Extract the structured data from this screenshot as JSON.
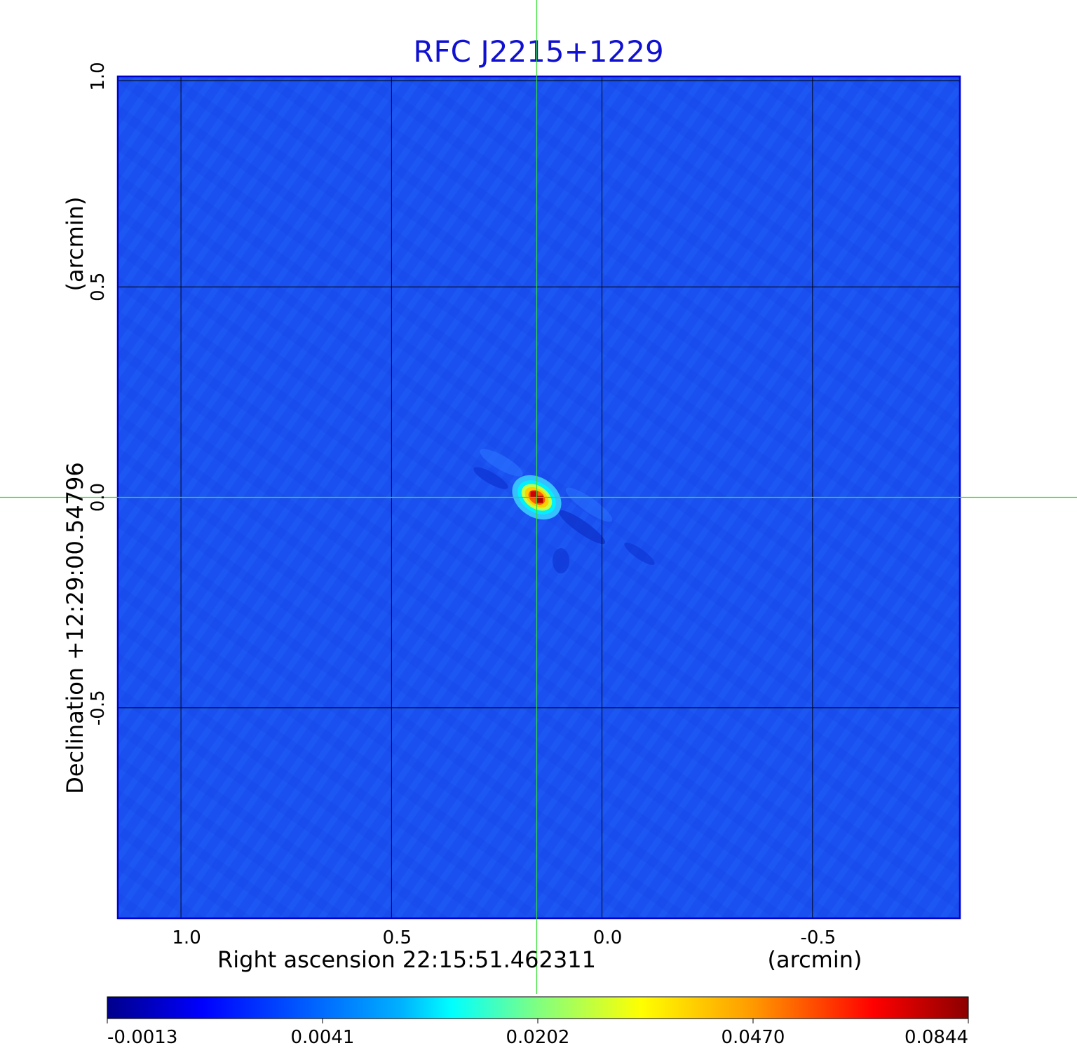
{
  "chart_data": {
    "type": "heatmap",
    "title": "RFC J2215+1229",
    "xlabel": "Right ascension  22:15:51.462311",
    "xunit": "(arcmin)",
    "ylabel": "Declination  +12:29:00.54796",
    "yunit": "(arcmin)",
    "xlim": [
      1.15,
      -0.85
    ],
    "ylim": [
      -1.0,
      1.0
    ],
    "x_ticks": [
      {
        "value": 1.0,
        "label": "1.0"
      },
      {
        "value": 0.5,
        "label": "0.5"
      },
      {
        "value": 0.0,
        "label": "0.0"
      },
      {
        "value": -0.5,
        "label": "-0.5"
      }
    ],
    "y_ticks": [
      {
        "value": 1.0,
        "label": "1.0"
      },
      {
        "value": 0.5,
        "label": "0.5"
      },
      {
        "value": 0.0,
        "label": "0.0"
      },
      {
        "value": -0.5,
        "label": "-0.5"
      }
    ],
    "grid": true,
    "crosshair": {
      "x": 0.155,
      "y": 0.0
    },
    "source_peak": {
      "x": 0.155,
      "y": 0.0,
      "value": 0.0844
    },
    "colorbar": {
      "min": -0.0013,
      "max": 0.0844,
      "tick_labels": [
        "-0.0013",
        "0.0041",
        "0.0202",
        "0.0470",
        "0.0844"
      ],
      "colormap": "jet"
    },
    "colors": {
      "title": "#1010d0",
      "background_field": "#1a4ff0",
      "crosshair": "#33dd33",
      "grid": "#000000",
      "frame": "#0000cc"
    }
  }
}
